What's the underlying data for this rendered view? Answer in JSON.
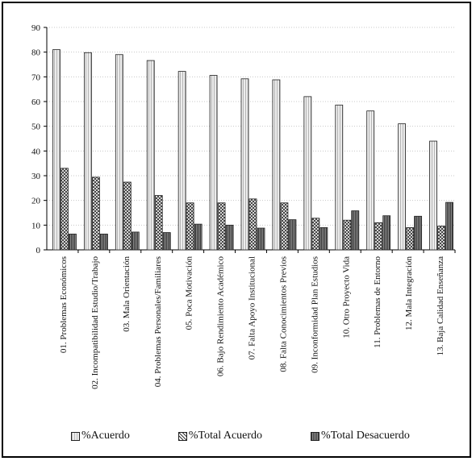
{
  "chart_data": {
    "type": "bar",
    "categories": [
      "01. Problemas Económicos",
      "02. Incompatibilidad Estudio/Trabajo",
      "03. Mala Orientación",
      "04. Problemas Personales/Familiares",
      "05. Poca Motivación",
      "06. Bajo Rendimiento Académico",
      "07. Falta Apoyo Institucional",
      "08. Falta Conocimientos Previos",
      "09. Inconformidad Plan Estudios",
      "10. Otro Proyecto Vida",
      "11. Problemas de Entorno",
      "12. Mala Integración",
      "13. Baja Calidad Enseñanza"
    ],
    "series": [
      {
        "name": "%Acuerdo",
        "values": [
          81,
          79.8,
          79,
          76.6,
          72.2,
          70.6,
          69.2,
          68.8,
          62,
          58.6,
          56.2,
          51,
          44
        ]
      },
      {
        "name": "%Total Acuerdo",
        "values": [
          33,
          29.4,
          27.4,
          22,
          19,
          19,
          20.6,
          19,
          12.8,
          12,
          11,
          9,
          9.6
        ]
      },
      {
        "name": "%Total Desacuerdo",
        "values": [
          6.4,
          6.4,
          7.2,
          7,
          10.4,
          10,
          8.8,
          12.2,
          9,
          15.8,
          13.8,
          13.6,
          19.2
        ]
      }
    ],
    "title": "",
    "xlabel": "",
    "ylabel": "",
    "ylim": [
      0,
      90
    ],
    "yticks": [
      "0",
      "10",
      "20",
      "30",
      "40",
      "50",
      "60",
      "70",
      "80",
      "90"
    ],
    "grid": true,
    "legend_position": "bottom"
  }
}
